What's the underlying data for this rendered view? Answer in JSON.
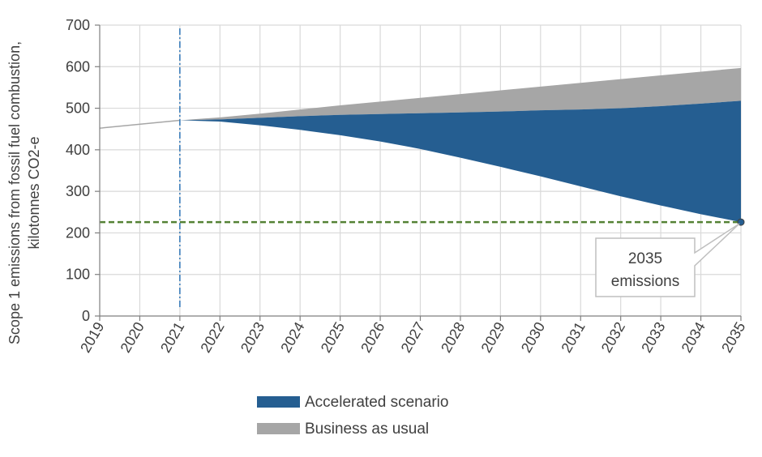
{
  "chart_data": {
    "type": "area",
    "ylabel_line1": "Scope 1 emissions from fossil fuel combustion,",
    "ylabel_line2": "kilotonnes CO2-e",
    "ylim": [
      0,
      700
    ],
    "y_ticks": [
      0,
      100,
      200,
      300,
      400,
      500,
      600,
      700
    ],
    "x": [
      2019,
      2020,
      2021,
      2022,
      2023,
      2024,
      2025,
      2026,
      2027,
      2028,
      2029,
      2030,
      2031,
      2032,
      2033,
      2034,
      2035
    ],
    "grid": true,
    "historical_line": {
      "x": [
        2019,
        2021
      ],
      "values": [
        452,
        471
      ],
      "color": "#a6a6a6"
    },
    "series": [
      {
        "name": "Accelerated scenario",
        "color": "#255e91",
        "x": [
          2021,
          2022,
          2023,
          2024,
          2025,
          2026,
          2027,
          2028,
          2029,
          2030,
          2031,
          2032,
          2033,
          2034,
          2035
        ],
        "upper": [
          471,
          473,
          477,
          481,
          484,
          486,
          488,
          490,
          492,
          495,
          497,
          500,
          505,
          511,
          518
        ],
        "lower": [
          471,
          468,
          459,
          448,
          435,
          420,
          402,
          381,
          359,
          336,
          312,
          288,
          266,
          245,
          226
        ]
      },
      {
        "name": "Business as usual",
        "color": "#a6a6a6",
        "x": [
          2021,
          2022,
          2023,
          2024,
          2025,
          2026,
          2027,
          2028,
          2029,
          2030,
          2031,
          2032,
          2033,
          2034,
          2035
        ],
        "upper": [
          471,
          478,
          487,
          497,
          507,
          516,
          525,
          534,
          543,
          552,
          561,
          570,
          579,
          588,
          597
        ],
        "lower": [
          471,
          473,
          477,
          481,
          484,
          486,
          488,
          490,
          492,
          495,
          497,
          500,
          505,
          511,
          518
        ]
      }
    ],
    "reference_year": 2021,
    "reference_line_color": "#2e75b6",
    "target_value": 226,
    "target_line_color": "#548235",
    "annotation": {
      "line1": "2035",
      "line2": "emissions",
      "x": 2035,
      "value": 226
    },
    "legend": {
      "placement": "bottom",
      "items": [
        {
          "label": "Accelerated scenario",
          "color": "#255e91"
        },
        {
          "label": "Business as usual",
          "color": "#a6a6a6"
        }
      ]
    }
  }
}
